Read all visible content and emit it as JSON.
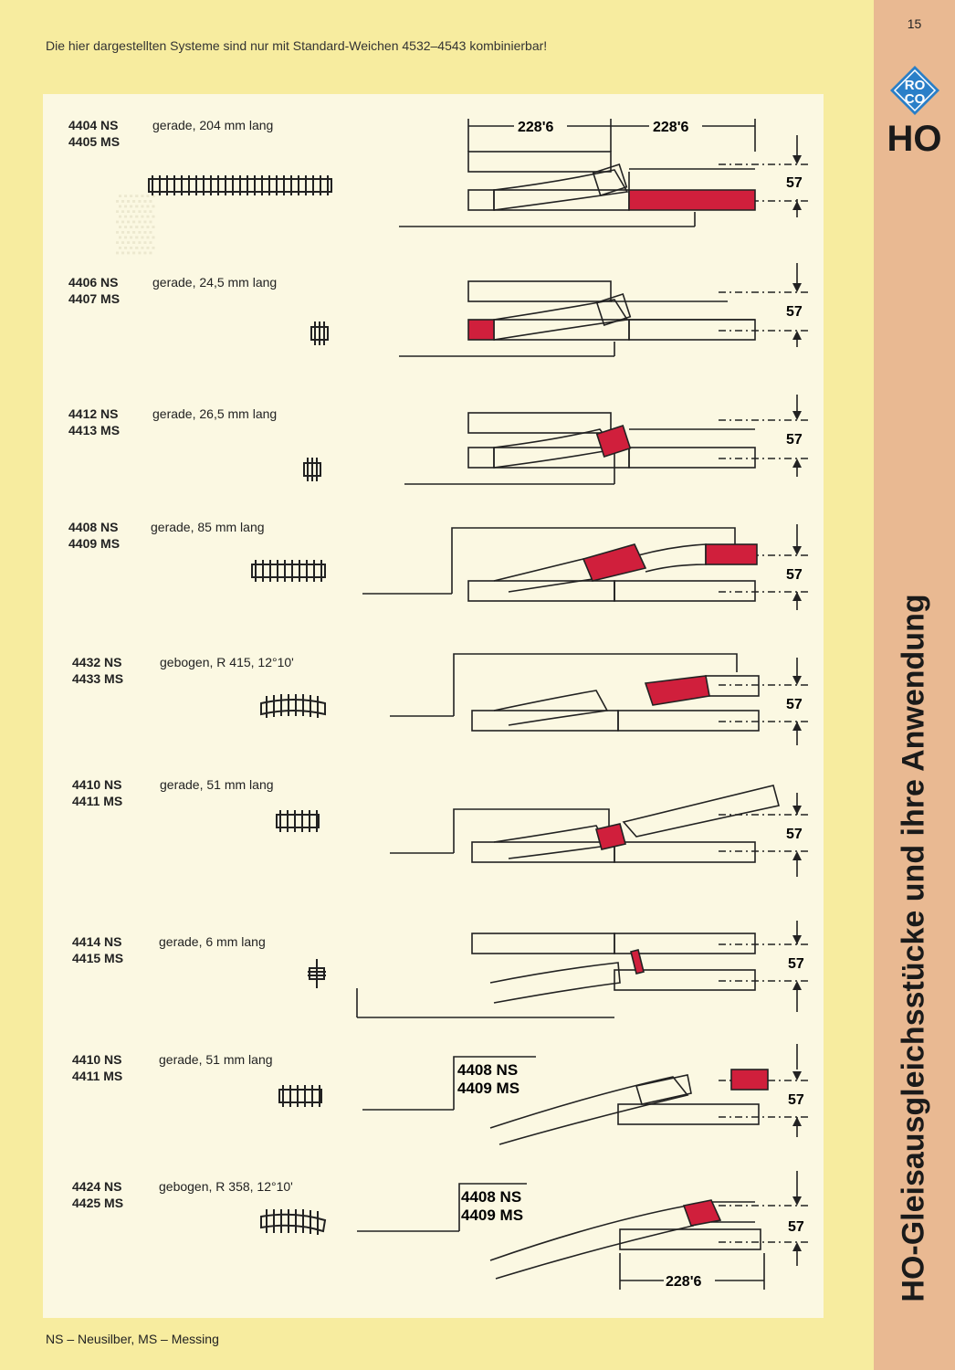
{
  "page_number": "15",
  "logo_text": {
    "line1": "RO",
    "line2": "CO"
  },
  "scale_label": "HO",
  "side_title": "HO-Gleisausgleichsstücke und ihre Anwendung",
  "header_note": "Die hier dargestellten Systeme sind nur mit Standard-Weichen 4532–4543 kombinierbar!",
  "footer_note": "NS – Neusilber, MS – Messing",
  "dimensions": {
    "top_left": "228'6",
    "top_right": "228'6",
    "gap": "57",
    "bottom": "228'6"
  },
  "colors": {
    "highlight": "#d01f3c",
    "accent_logo": "#2a7fc8",
    "background": "#f7ec9f",
    "panel": "#fbf8e2"
  },
  "rows": [
    {
      "ns": "4404  NS",
      "ms": "4405  MS",
      "desc": "gerade, 204 mm lang"
    },
    {
      "ns": "4406  NS",
      "ms": "4407  MS",
      "desc": "gerade, 24,5 mm lang"
    },
    {
      "ns": "4412  NS",
      "ms": "4413  MS",
      "desc": "gerade, 26,5 mm lang"
    },
    {
      "ns": "4408  NS",
      "ms": "4409  MS",
      "desc": "gerade, 85 mm lang"
    },
    {
      "ns": "4432  NS",
      "ms": "4433  MS",
      "desc": "gebogen, R 415, 12°10'"
    },
    {
      "ns": "4410  NS",
      "ms": "4411  MS",
      "desc": "gerade, 51 mm lang"
    },
    {
      "ns": "4414  NS",
      "ms": "4415  MS",
      "desc": "gerade, 6 mm lang"
    },
    {
      "ns": "4410  NS",
      "ms": "4411  MS",
      "desc": "gerade, 51 mm lang"
    },
    {
      "ns": "4424  NS",
      "ms": "4425  MS",
      "desc": "gebogen, R 358, 12°10'"
    }
  ],
  "diagram_labels": {
    "ns": "4408 NS",
    "ms": "4409 MS"
  }
}
